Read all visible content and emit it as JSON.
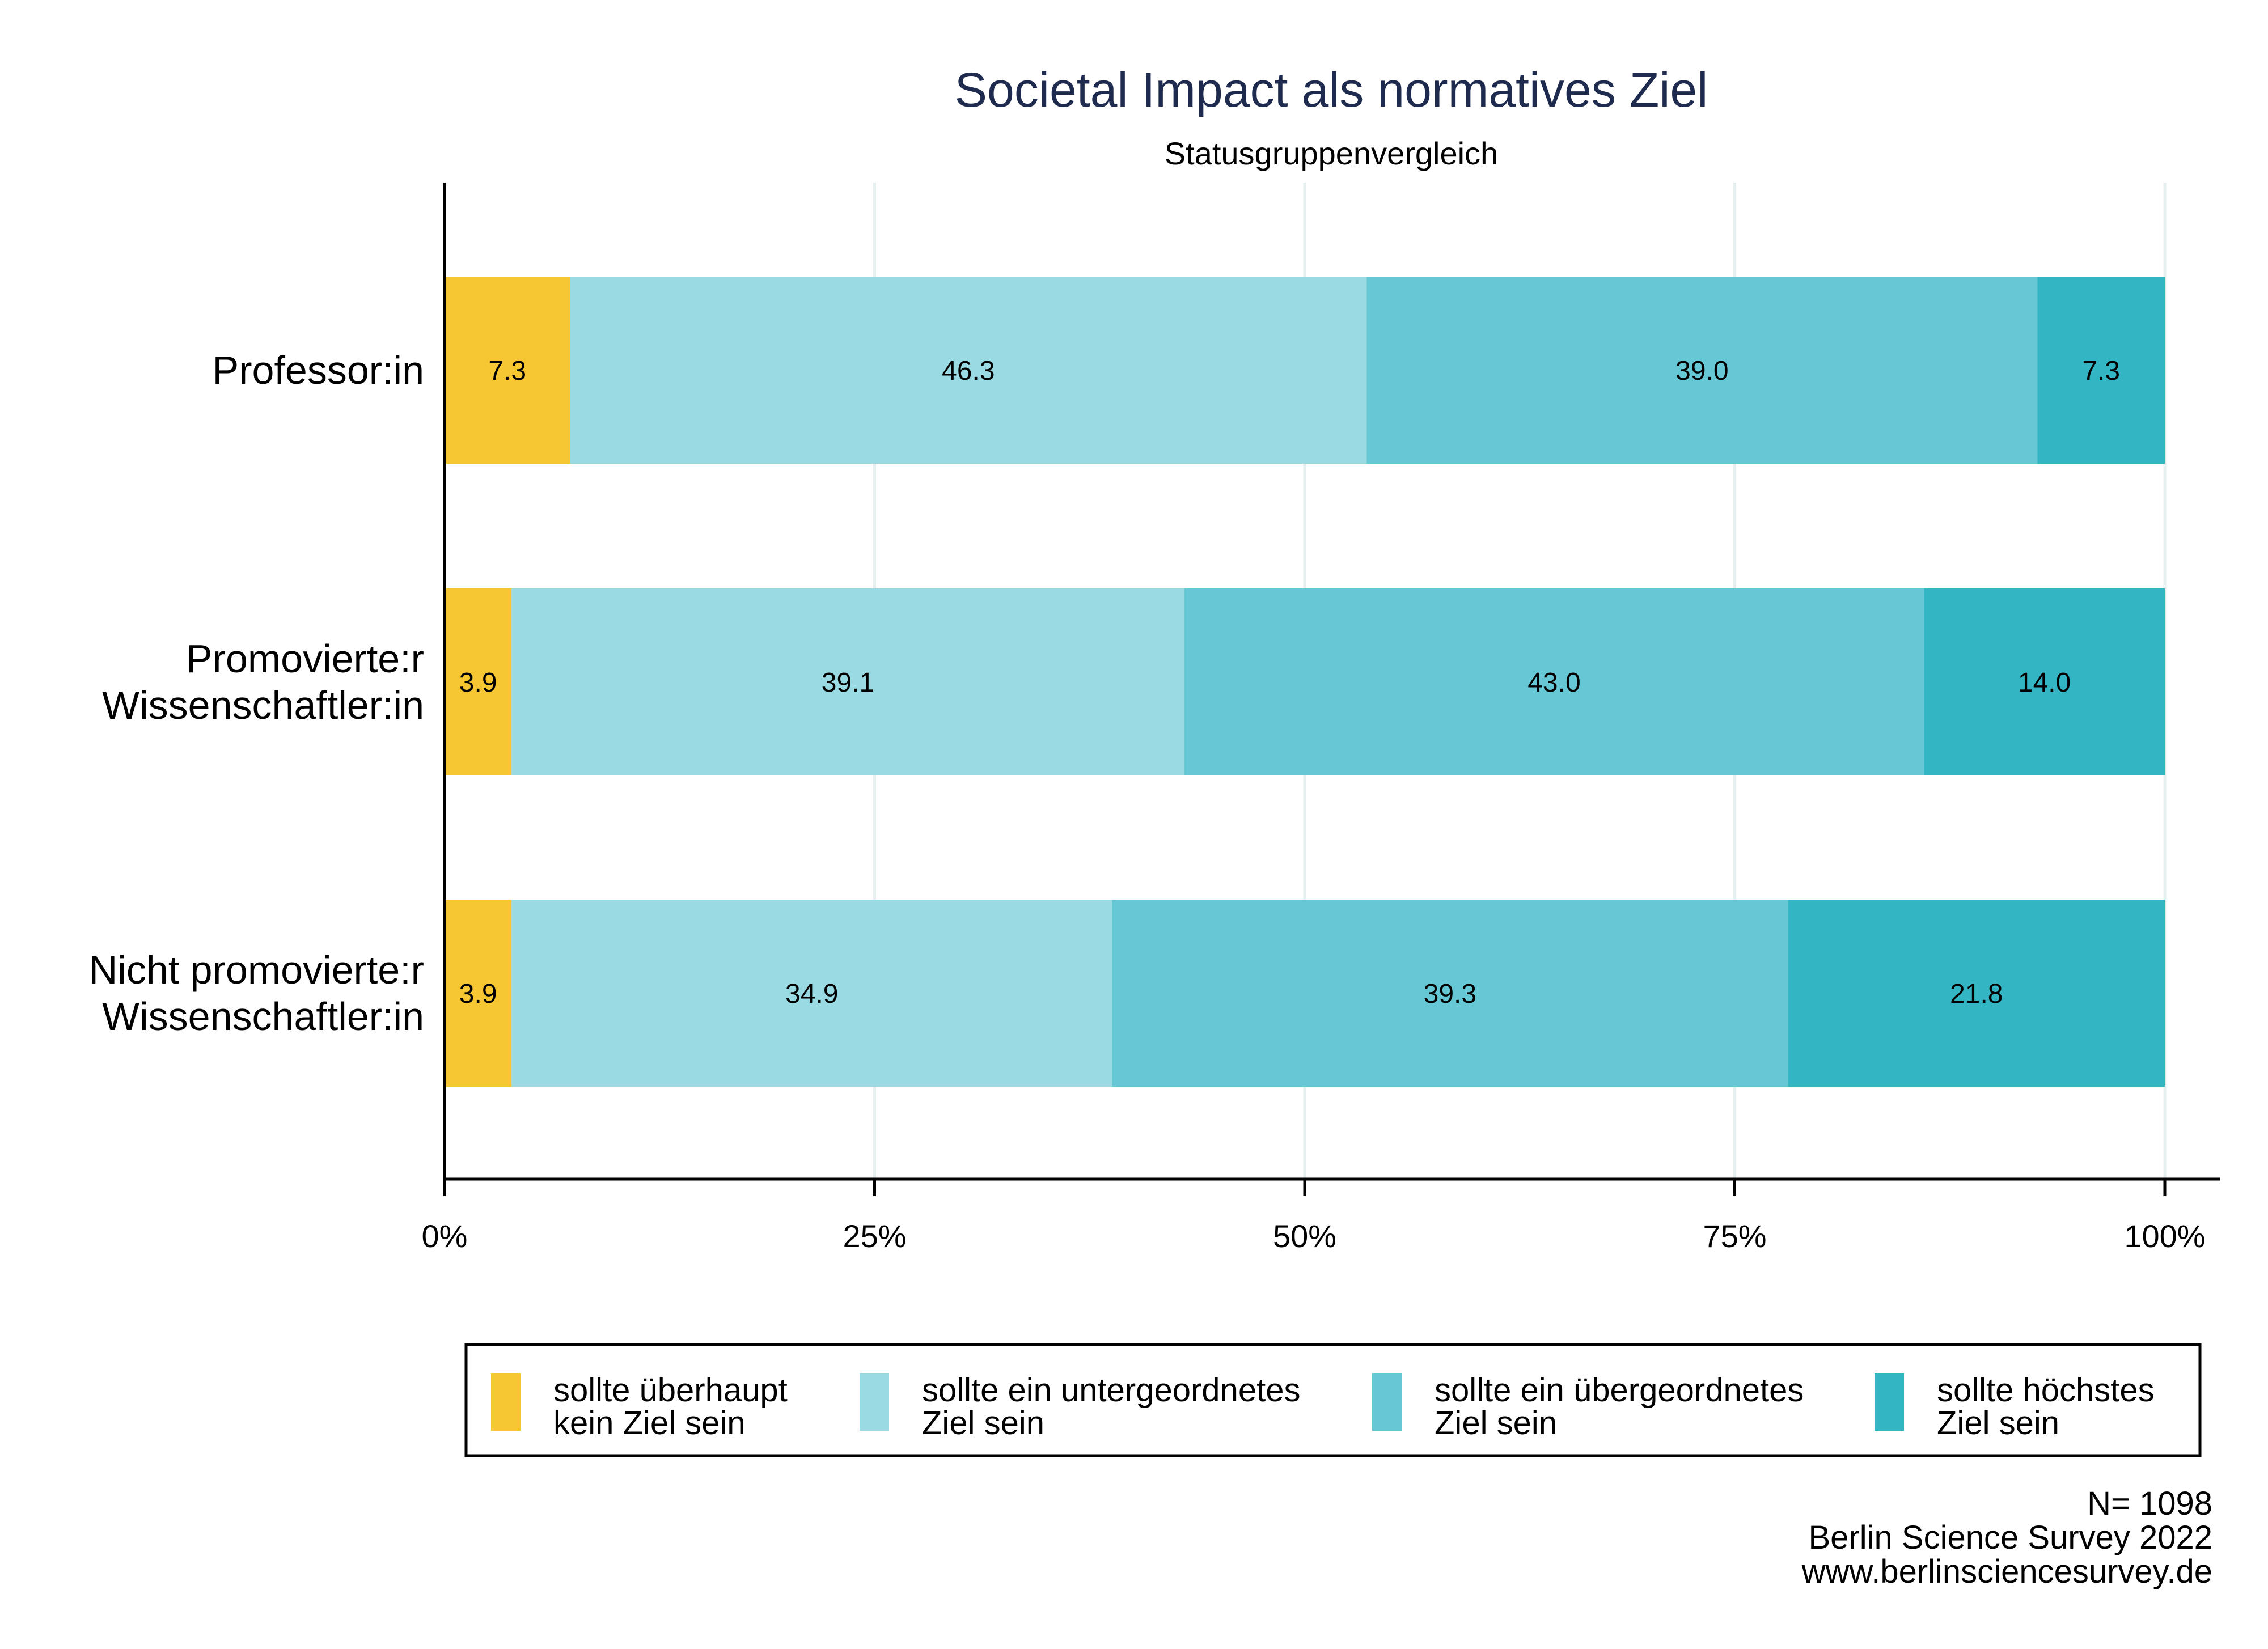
{
  "chart_data": {
    "type": "stacked-horizontal-bar",
    "title": "Societal Impact als normatives Ziel",
    "subtitle": "Statusgruppenvergleich",
    "categories": [
      [
        "Professor:in"
      ],
      [
        "Promovierte:r",
        "Wissenschaftler:in"
      ],
      [
        "Nicht promovierte:r",
        "Wissenschaftler:in"
      ]
    ],
    "series": [
      {
        "name": "sollte überhaupt kein Ziel sein",
        "legend_lines": [
          "sollte überhaupt",
          "kein Ziel sein"
        ],
        "color": "#f6c733",
        "values": [
          7.3,
          3.9,
          3.9
        ]
      },
      {
        "name": "sollte ein untergeordnetes Ziel sein",
        "legend_lines": [
          "sollte ein untergeordnetes",
          "Ziel sein"
        ],
        "color": "#9adae2",
        "values": [
          46.3,
          39.1,
          34.9
        ]
      },
      {
        "name": "sollte ein übergeordnetes Ziel sein",
        "legend_lines": [
          "sollte ein übergeordnetes",
          "Ziel sein"
        ],
        "color": "#66c8d4",
        "values": [
          39.0,
          43.0,
          39.3
        ]
      },
      {
        "name": "sollte höchstes Ziel sein",
        "legend_lines": [
          "sollte höchstes",
          "Ziel sein"
        ],
        "color": "#33b5c3",
        "values": [
          7.3,
          14.0,
          21.8
        ]
      }
    ],
    "xlim": [
      0,
      100
    ],
    "x_ticks": [
      0,
      25,
      50,
      75,
      100
    ],
    "x_tick_labels": [
      "0%",
      "25%",
      "50%",
      "75%",
      "100%"
    ],
    "grid": true,
    "legend_position": "bottom"
  },
  "source": {
    "lines": [
      "N= 1098",
      "Berlin Science Survey 2022",
      "www.berlinsciencesurvey.de"
    ]
  }
}
